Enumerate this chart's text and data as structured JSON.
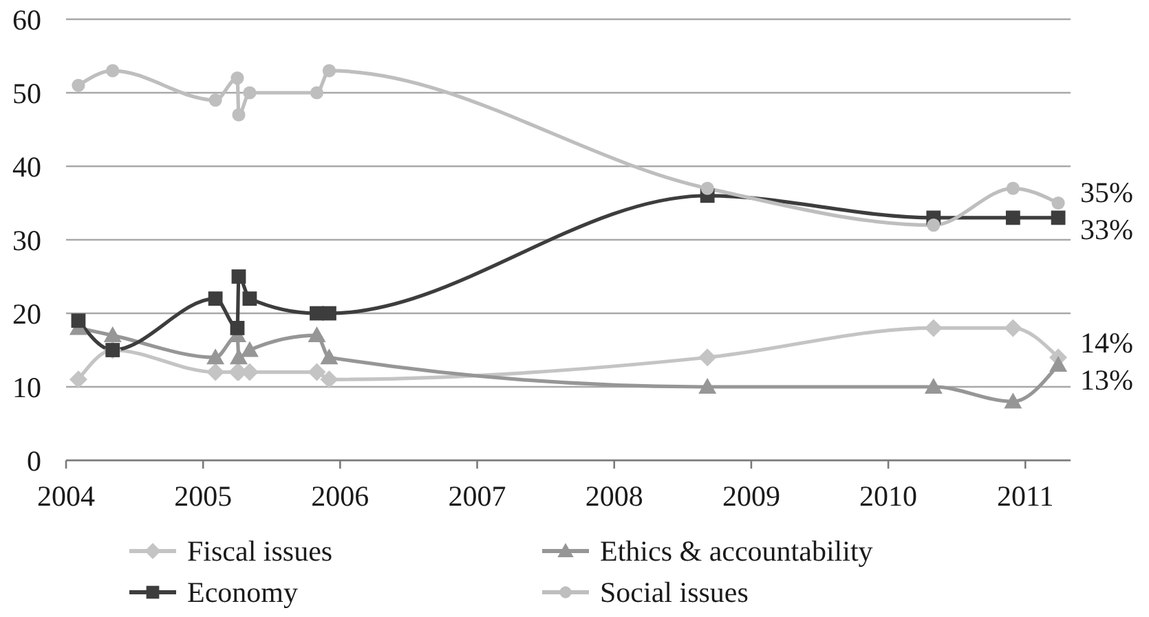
{
  "chart_data": {
    "type": "line",
    "x": [
      2004.09,
      2004.34,
      2005.09,
      2005.25,
      2005.26,
      2005.34,
      2005.83,
      2005.92,
      2008.68,
      2010.33,
      2010.91,
      2011.24
    ],
    "xlim": [
      2004,
      2011.33
    ],
    "xticks": [
      2004,
      2005,
      2006,
      2007,
      2008,
      2009,
      2010,
      2011
    ],
    "ylim": [
      0,
      60
    ],
    "yticks": [
      0,
      10,
      20,
      30,
      40,
      50,
      60
    ],
    "grid": "y",
    "legend": "bottom",
    "series": [
      {
        "name": "Fiscal issues",
        "color": "#c4c4c4",
        "marker": "diamond",
        "values": [
          11,
          15,
          12,
          12,
          12,
          12,
          12,
          11,
          14,
          18,
          18,
          14
        ],
        "value_labels": [
          null,
          null,
          null,
          null,
          null,
          null,
          null,
          null,
          null,
          null,
          null,
          "14%"
        ]
      },
      {
        "name": "Ethics & accountability",
        "color": "#969696",
        "marker": "triangle",
        "values": [
          18,
          17,
          14,
          17,
          14,
          15,
          17,
          14,
          10,
          10,
          8,
          13
        ],
        "value_labels": [
          null,
          null,
          null,
          null,
          null,
          null,
          null,
          null,
          null,
          null,
          null,
          "13%"
        ]
      },
      {
        "name": "Economy",
        "color": "#3d3d3d",
        "marker": "square",
        "values": [
          19,
          15,
          22,
          18,
          25,
          22,
          20,
          20,
          36,
          33,
          33,
          33
        ],
        "value_labels": [
          null,
          null,
          null,
          null,
          null,
          null,
          null,
          null,
          null,
          null,
          null,
          "33%"
        ]
      },
      {
        "name": "Social issues",
        "color": "#bebebe",
        "marker": "circle",
        "values": [
          51,
          53,
          49,
          52,
          47,
          50,
          50,
          53,
          37,
          32,
          37,
          35
        ],
        "value_labels": [
          null,
          null,
          null,
          null,
          null,
          null,
          null,
          null,
          null,
          null,
          null,
          "35%"
        ]
      }
    ]
  }
}
